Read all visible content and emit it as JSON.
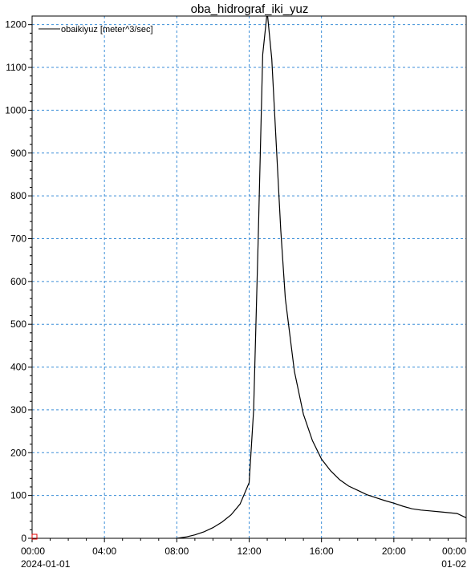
{
  "chart_data": {
    "type": "line",
    "title": "oba_hidrograf_iki_yuz",
    "xlabel": "",
    "ylabel": "",
    "x_unit": "hours since 2024-01-01 00:00",
    "xlim": [
      0,
      24
    ],
    "ylim": [
      0,
      1220
    ],
    "grid": true,
    "legend_position": "top-left",
    "x_ticks": [
      {
        "value": 0,
        "label": "00:00",
        "sublabel": "2024-01-01"
      },
      {
        "value": 4,
        "label": "04:00",
        "sublabel": ""
      },
      {
        "value": 8,
        "label": "08:00",
        "sublabel": ""
      },
      {
        "value": 12,
        "label": "12:00",
        "sublabel": ""
      },
      {
        "value": 16,
        "label": "16:00",
        "sublabel": ""
      },
      {
        "value": 20,
        "label": "20:00",
        "sublabel": ""
      },
      {
        "value": 24,
        "label": "00:00",
        "sublabel": "01-02"
      }
    ],
    "y_ticks": [
      {
        "value": 0,
        "label": "0"
      },
      {
        "value": 100,
        "label": "100"
      },
      {
        "value": 200,
        "label": "200"
      },
      {
        "value": 300,
        "label": "300"
      },
      {
        "value": 400,
        "label": "400"
      },
      {
        "value": 500,
        "label": "500"
      },
      {
        "value": 600,
        "label": "600"
      },
      {
        "value": 700,
        "label": "700"
      },
      {
        "value": 800,
        "label": "800"
      },
      {
        "value": 900,
        "label": "900"
      },
      {
        "value": 1000,
        "label": "1000"
      },
      {
        "value": 1100,
        "label": "1100"
      },
      {
        "value": 1200,
        "label": "1200"
      }
    ],
    "series": [
      {
        "name": "obaikiyuz [meter^3/sec]",
        "color": "#000000",
        "x": [
          8.0,
          8.5,
          9.0,
          9.5,
          10.0,
          10.5,
          11.0,
          11.5,
          12.0,
          12.25,
          12.5,
          12.75,
          13.0,
          13.25,
          13.5,
          13.75,
          14.0,
          14.5,
          15.0,
          15.5,
          16.0,
          16.5,
          17.0,
          17.5,
          18.0,
          18.5,
          19.0,
          19.5,
          20.0,
          20.5,
          21.0,
          21.5,
          22.0,
          22.5,
          23.0,
          23.5,
          24.0
        ],
        "y": [
          0,
          3,
          8,
          15,
          25,
          38,
          55,
          80,
          130,
          300,
          700,
          1130,
          1230,
          1120,
          920,
          720,
          560,
          390,
          290,
          228,
          185,
          158,
          137,
          122,
          112,
          102,
          95,
          88,
          82,
          75,
          69,
          66,
          64,
          62,
          60,
          58,
          48
        ]
      }
    ]
  }
}
